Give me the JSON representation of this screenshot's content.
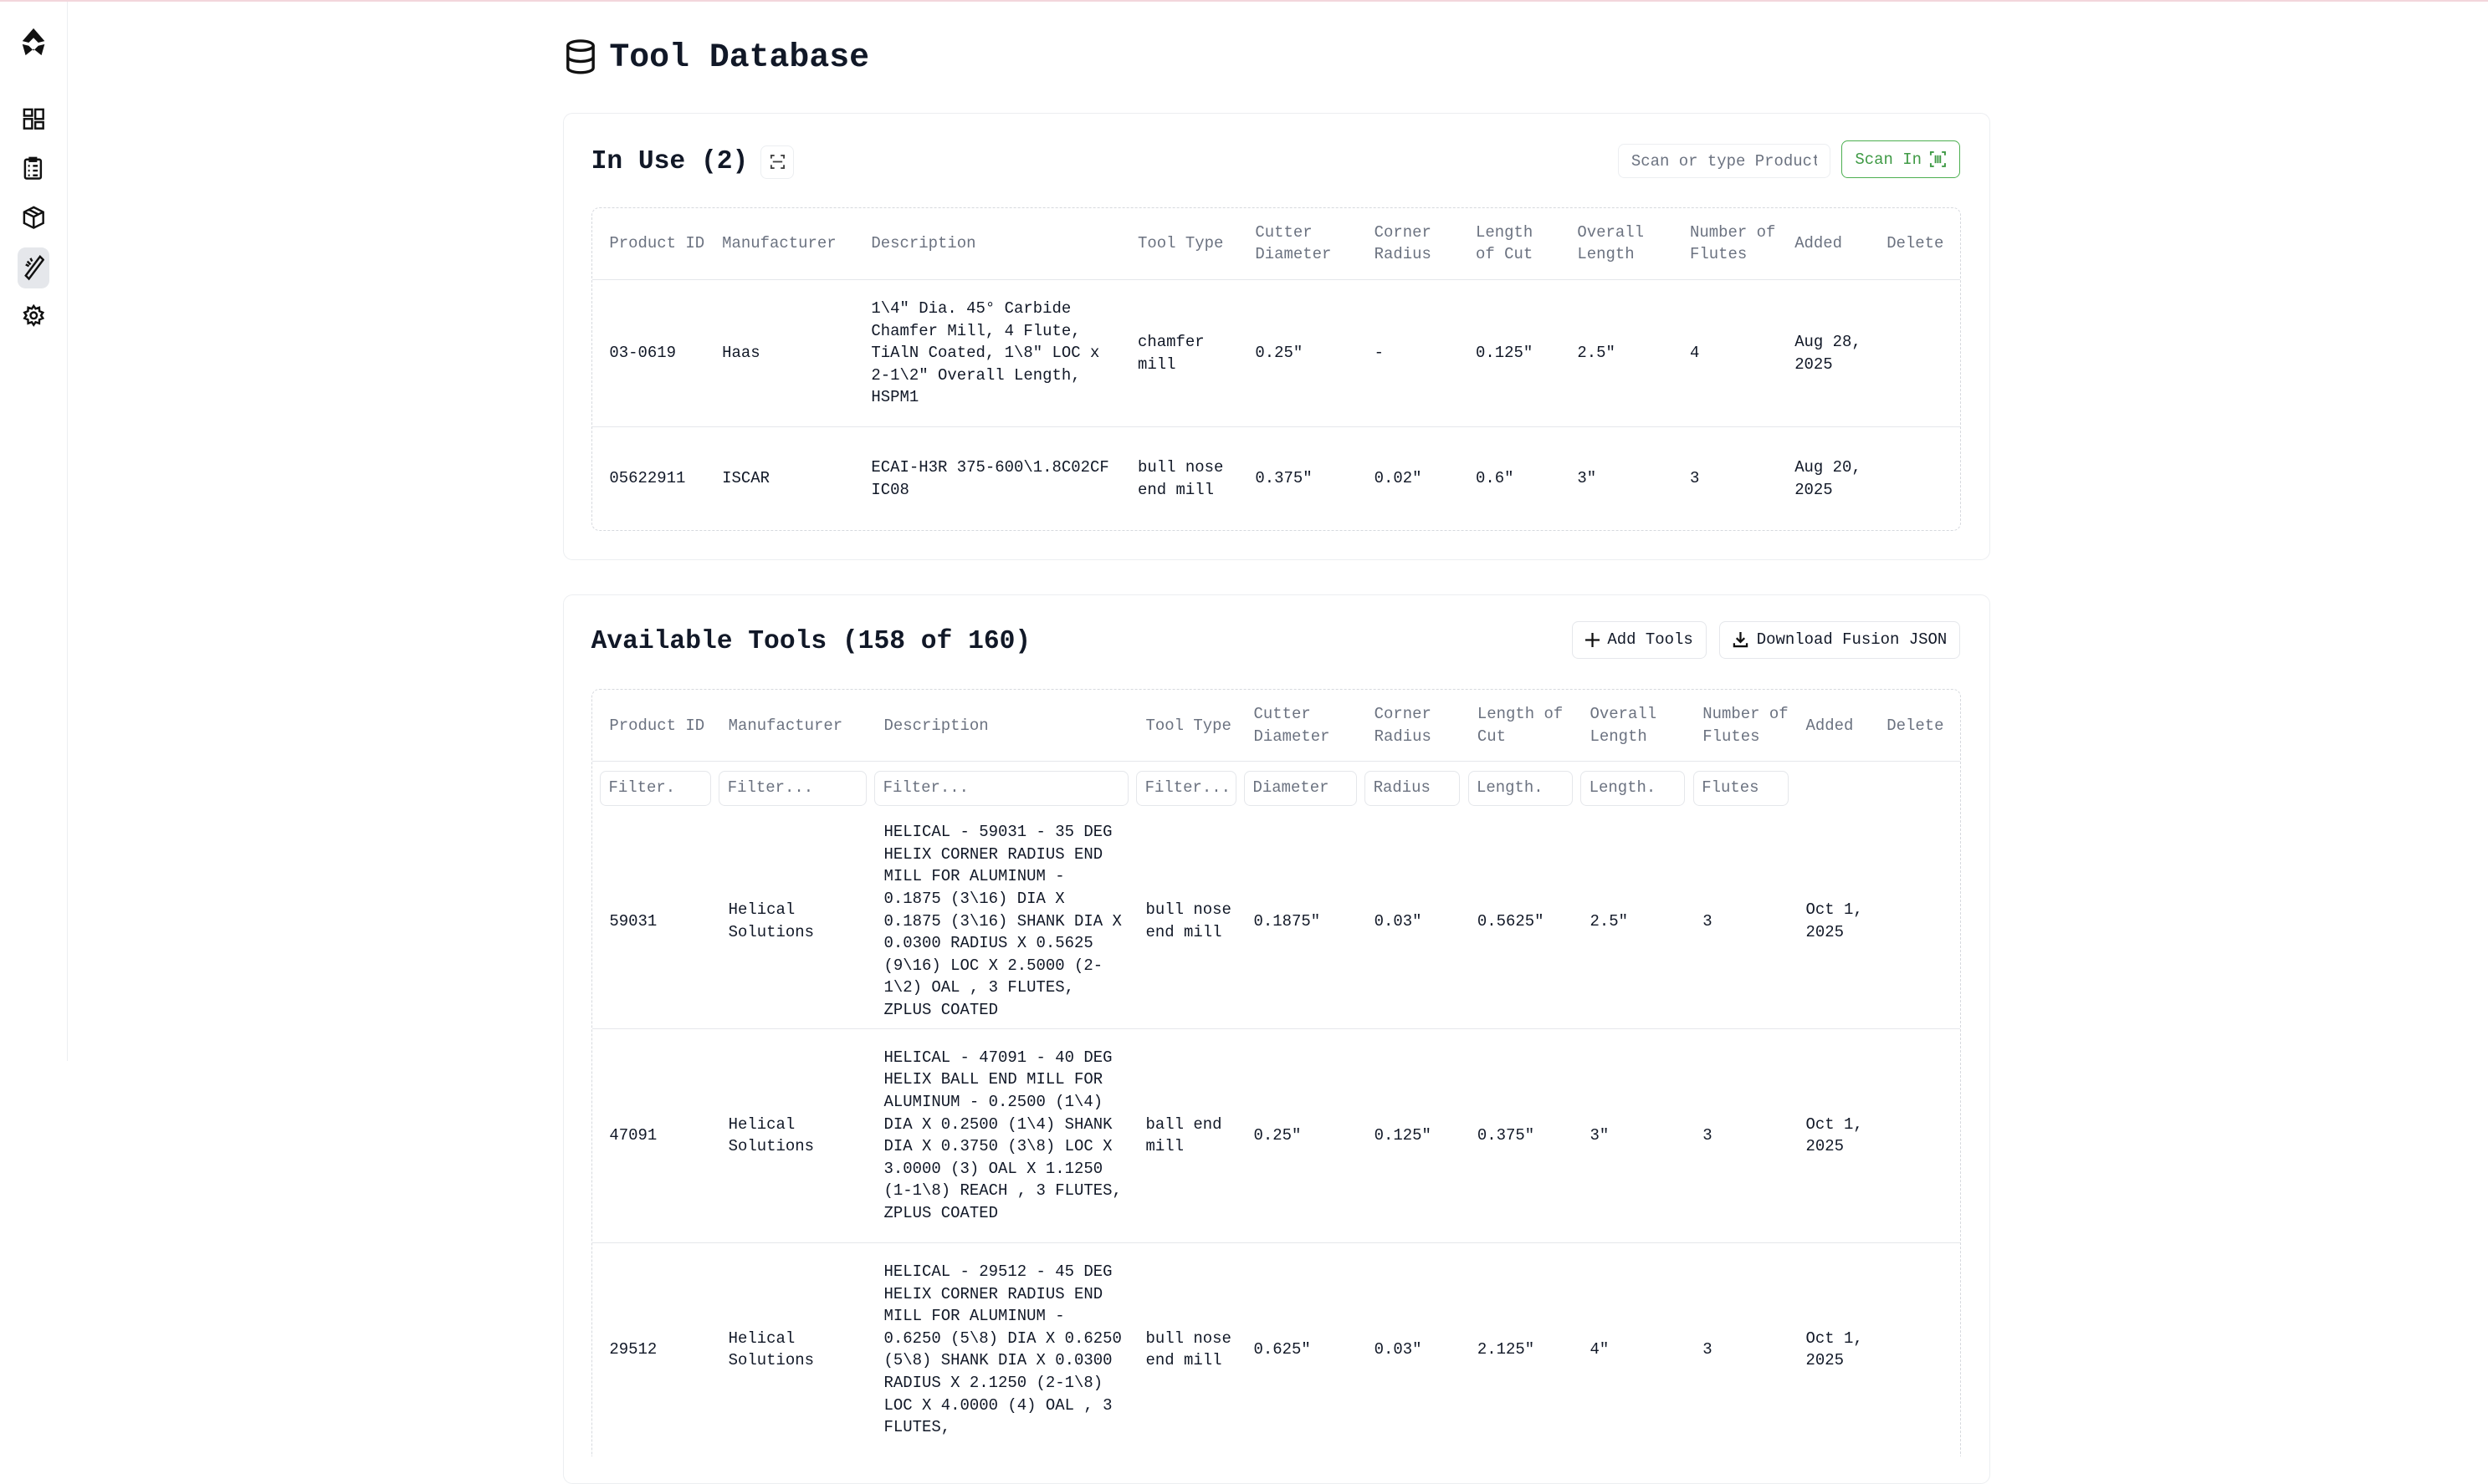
{
  "page": {
    "title": "Tool Database",
    "title_icon": "database-icon"
  },
  "sidebar": {
    "items": [
      {
        "name": "logo",
        "icon": "logo-icon"
      },
      {
        "name": "dashboard",
        "icon": "grid-icon"
      },
      {
        "name": "checklist",
        "icon": "clipboard-icon"
      },
      {
        "name": "inventory",
        "icon": "box-icon"
      },
      {
        "name": "tools",
        "icon": "tool-icon",
        "active": true
      },
      {
        "name": "settings",
        "icon": "gear-icon"
      }
    ]
  },
  "in_use": {
    "title": "In Use (2)",
    "scan_placeholder": "Scan or type Product",
    "scan_button": "Scan In",
    "accent": "#3f9a45",
    "columns": [
      "Product ID",
      "Manufacturer",
      "Description",
      "Tool Type",
      "Cutter Diameter",
      "Corner Radius",
      "Length of Cut",
      "Overall Length",
      "Number of Flutes",
      "Added",
      "Delete"
    ],
    "rows": [
      [
        "03-0619",
        "Haas",
        "1\\4\" Dia. 45° Carbide Chamfer Mill, 4 Flute, TiAlN Coated, 1\\8\" LOC x 2-1\\2\" Overall Length, HSPM1",
        "chamfer mill",
        "0.25\"",
        "-",
        "0.125\"",
        "2.5\"",
        "4",
        "Aug 28, 2025",
        ""
      ],
      [
        "05622911",
        "ISCAR",
        "ECAI-H3R 375-600\\1.8C02CF IC08",
        "bull nose end mill",
        "0.375\"",
        "0.02\"",
        "0.6\"",
        "3\"",
        "3",
        "Aug 20, 2025",
        ""
      ]
    ]
  },
  "available": {
    "title": "Available Tools (158 of 160)",
    "add_button": "Add Tools",
    "download_button": "Download Fusion JSON",
    "columns": [
      "Product ID",
      "Manufacturer",
      "Description",
      "Tool Type",
      "Cutter Diameter",
      "Corner Radius",
      "Length of Cut",
      "Overall Length",
      "Number of Flutes",
      "Added",
      "Delete"
    ],
    "filters": [
      "Filter.",
      "Filter...",
      "Filter...",
      "Filter...",
      "Diameter",
      "Radius",
      "Length.",
      "Length.",
      "Flutes"
    ],
    "rows": [
      [
        "59031",
        "Helical Solutions",
        "HELICAL - 59031 - 35 DEG HELIX CORNER RADIUS END MILL FOR ALUMINUM - 0.1875 (3\\16) DIA X 0.1875 (3\\16) SHANK DIA X 0.0300 RADIUS X 0.5625 (9\\16) LOC X 2.5000 (2-1\\2) OAL , 3 FLUTES, ZPLUS COATED",
        "bull nose end mill",
        "0.1875\"",
        "0.03\"",
        "0.5625\"",
        "2.5\"",
        "3",
        "Oct 1, 2025",
        ""
      ],
      [
        "47091",
        "Helical Solutions",
        "HELICAL - 47091 - 40 DEG HELIX BALL END MILL FOR ALUMINUM - 0.2500 (1\\4) DIA X 0.2500 (1\\4) SHANK DIA X 0.3750 (3\\8) LOC X 3.0000 (3) OAL X 1.1250 (1-1\\8) REACH , 3 FLUTES, ZPLUS COATED",
        "ball end mill",
        "0.25\"",
        "0.125\"",
        "0.375\"",
        "3\"",
        "3",
        "Oct 1, 2025",
        ""
      ],
      [
        "29512",
        "Helical Solutions",
        "HELICAL - 29512 - 45 DEG HELIX CORNER RADIUS END MILL FOR ALUMINUM - 0.6250 (5\\8) DIA X 0.6250 (5\\8) SHANK DIA X 0.0300 RADIUS X 2.1250 (2-1\\8) LOC X 4.0000 (4) OAL , 3 FLUTES,",
        "bull nose end mill",
        "0.625\"",
        "0.03\"",
        "2.125\"",
        "4\"",
        "3",
        "Oct 1, 2025",
        ""
      ]
    ]
  }
}
